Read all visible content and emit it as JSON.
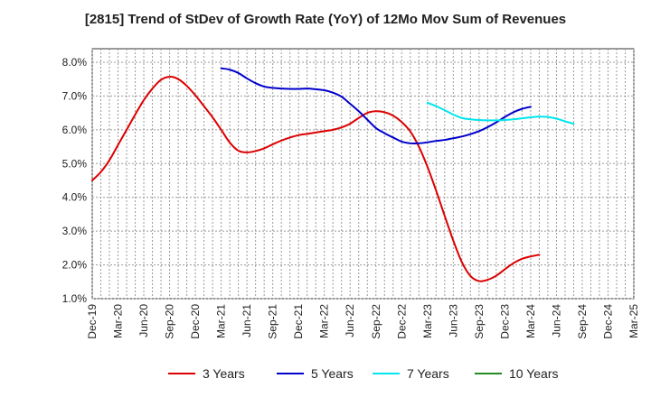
{
  "chart_data": {
    "type": "line",
    "title": "[2815]  Trend of StDev of Growth Rate (YoY) of 12Mo Mov Sum of Revenues",
    "xlabel": "",
    "ylabel": "",
    "ylim": [
      1.0,
      8.4
    ],
    "yticks": [
      "1.0%",
      "2.0%",
      "3.0%",
      "4.0%",
      "5.0%",
      "6.0%",
      "7.0%",
      "8.0%"
    ],
    "x_tick_labels": [
      "Dec-19",
      "Mar-20",
      "Jun-20",
      "Sep-20",
      "Dec-20",
      "Mar-21",
      "Jun-21",
      "Sep-21",
      "Dec-21",
      "Mar-22",
      "Jun-22",
      "Sep-22",
      "Dec-22",
      "Mar-23",
      "Jun-23",
      "Sep-23",
      "Dec-23",
      "Mar-24",
      "Jun-24",
      "Sep-24",
      "Dec-24",
      "Mar-25"
    ],
    "grid": true,
    "legend_position": "bottom",
    "series": [
      {
        "name": "3 Years",
        "color": "#dd0000",
        "start_index": 0,
        "values": [
          4.5,
          4.75,
          5.1,
          5.55,
          6.0,
          6.45,
          6.88,
          7.22,
          7.48,
          7.57,
          7.5,
          7.3,
          7.02,
          6.7,
          6.37,
          6.0,
          5.62,
          5.38,
          5.33,
          5.37,
          5.45,
          5.57,
          5.68,
          5.77,
          5.84,
          5.88,
          5.92,
          5.96,
          6.0,
          6.07,
          6.18,
          6.35,
          6.5,
          6.55,
          6.52,
          6.42,
          6.23,
          5.95,
          5.5,
          4.9,
          4.2,
          3.45,
          2.72,
          2.08,
          1.67,
          1.52,
          1.56,
          1.68,
          1.87,
          2.05,
          2.18,
          2.25,
          2.3
        ]
      },
      {
        "name": "5 Years",
        "color": "#0000cc",
        "start_index": 15,
        "values": [
          7.82,
          7.78,
          7.68,
          7.52,
          7.38,
          7.28,
          7.24,
          7.22,
          7.21,
          7.21,
          7.22,
          7.2,
          7.17,
          7.1,
          6.98,
          6.77,
          6.55,
          6.3,
          6.05,
          5.9,
          5.77,
          5.65,
          5.6,
          5.6,
          5.63,
          5.67,
          5.7,
          5.75,
          5.8,
          5.87,
          5.96,
          6.08,
          6.22,
          6.38,
          6.52,
          6.62,
          6.68
        ]
      },
      {
        "name": "7 Years",
        "color": "#00e5ee",
        "start_index": 39,
        "values": [
          6.8,
          6.7,
          6.58,
          6.45,
          6.35,
          6.31,
          6.29,
          6.28,
          6.28,
          6.29,
          6.31,
          6.34,
          6.37,
          6.39,
          6.38,
          6.33,
          6.25,
          6.18
        ]
      },
      {
        "name": "10 Years",
        "color": "#228b22",
        "start_index": 0,
        "values": []
      }
    ]
  }
}
